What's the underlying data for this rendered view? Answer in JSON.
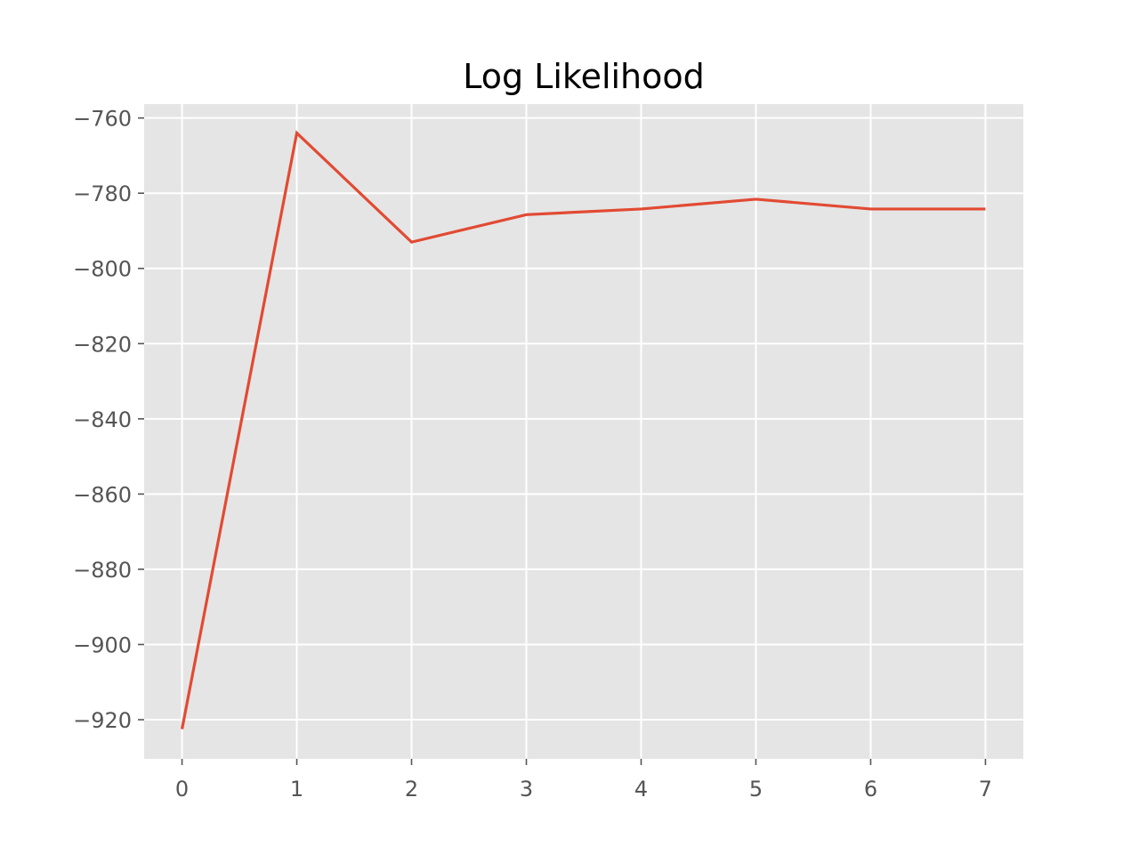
{
  "chart_data": {
    "type": "line",
    "title": "Log Likelihood",
    "xlabel": "",
    "ylabel": "",
    "x": [
      0,
      1,
      2,
      3,
      4,
      5,
      6,
      7
    ],
    "series": [
      {
        "values": [
          -922.5,
          -764.0,
          -793.0,
          -785.7,
          -784.2,
          -781.6,
          -784.2,
          -784.2
        ]
      }
    ],
    "xlim": [
      -0.33,
      7.33
    ],
    "ylim": [
      -930.4,
      -756.3
    ],
    "xticks": [
      0,
      1,
      2,
      3,
      4,
      5,
      6,
      7
    ],
    "xtick_labels": [
      "0",
      "1",
      "2",
      "3",
      "4",
      "5",
      "6",
      "7"
    ],
    "yticks": [
      -920,
      -900,
      -880,
      -860,
      -840,
      -820,
      -800,
      -780,
      -760
    ],
    "ytick_labels": [
      "−920",
      "−900",
      "−880",
      "−860",
      "−840",
      "−820",
      "−800",
      "−780",
      "−760"
    ],
    "grid": true,
    "legend": false,
    "colors": {
      "line": "#e24a33",
      "plot_background": "#e5e5e5",
      "grid": "#ffffff",
      "tick_text": "#555555",
      "title_text": "#000000"
    }
  }
}
